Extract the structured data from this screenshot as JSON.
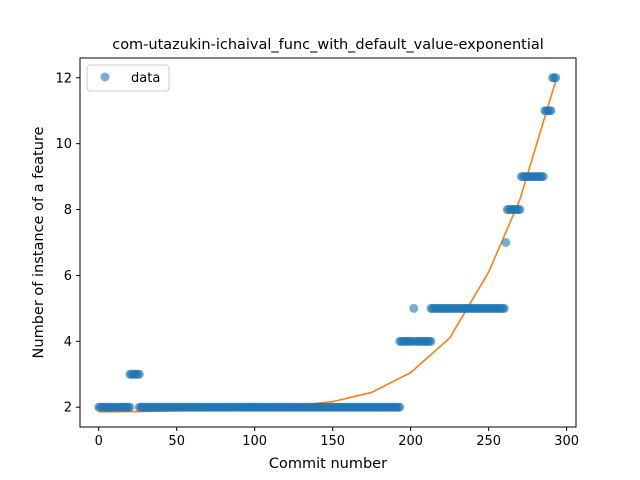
{
  "chart_data": {
    "type": "scatter",
    "title": "com-utazukin-ichaival_func_with_default_value-exponential",
    "xlabel": "Commit number",
    "ylabel": "Number of instance of a feature",
    "xlim": [
      -12,
      306
    ],
    "ylim": [
      1.4,
      12.6
    ],
    "xticks": [
      0,
      50,
      100,
      150,
      200,
      250,
      300
    ],
    "yticks": [
      2,
      4,
      6,
      8,
      10,
      12
    ],
    "grid": false,
    "legend": {
      "position": "top-left",
      "entries": [
        "data"
      ]
    },
    "colors": {
      "data": "#1f77b4",
      "fit": "#ff7f0e"
    },
    "series": [
      {
        "name": "data",
        "kind": "points",
        "runs": [
          {
            "x_start": 0,
            "x_end": 20,
            "y": 2
          },
          {
            "x_start": 20,
            "x_end": 26,
            "y": 3
          },
          {
            "x_start": 26,
            "x_end": 193,
            "y": 2
          },
          {
            "x_start": 193,
            "x_end": 201,
            "y": 4
          },
          {
            "x_start": 202,
            "x_end": 202,
            "y": 5
          },
          {
            "x_start": 203,
            "x_end": 213,
            "y": 4
          },
          {
            "x_start": 213,
            "x_end": 260,
            "y": 5
          },
          {
            "x_start": 261,
            "x_end": 261,
            "y": 7
          },
          {
            "x_start": 262,
            "x_end": 270,
            "y": 8
          },
          {
            "x_start": 271,
            "x_end": 285,
            "y": 9
          },
          {
            "x_start": 286,
            "x_end": 290,
            "y": 11
          },
          {
            "x_start": 291,
            "x_end": 293,
            "y": 12
          }
        ]
      },
      {
        "name": "",
        "kind": "exponential-fit",
        "x": [
          0,
          25,
          50,
          75,
          100,
          125,
          150,
          175,
          200,
          225,
          250,
          270,
          293
        ],
        "y": [
          1.86,
          1.87,
          1.89,
          1.92,
          1.97,
          2.04,
          2.17,
          2.45,
          3.05,
          4.1,
          6.1,
          8.3,
          11.9
        ]
      }
    ]
  }
}
